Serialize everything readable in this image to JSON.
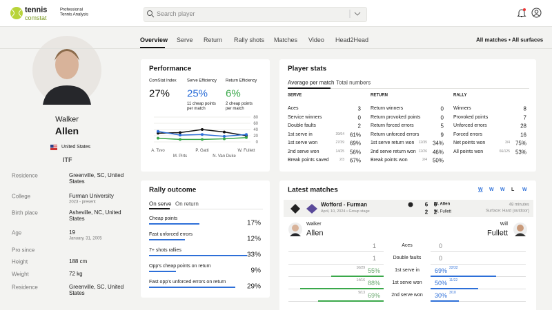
{
  "header": {
    "logo_top": "tennis",
    "logo_bottom": "comstat",
    "tagline": [
      "Professional",
      "Tennis Analysis"
    ],
    "search_placeholder": "Search player"
  },
  "player": {
    "first_name": "Walker",
    "last_name": "Allen",
    "country": "United States",
    "federation": "ITF",
    "info": [
      {
        "label": "Residence",
        "value": "Greenville, SC, United States"
      },
      {
        "label": "College",
        "value": "Furman University",
        "note": "2023 - present"
      },
      {
        "label": "Birth place",
        "value": "Asheville, NC, United States"
      },
      {
        "label": "Age",
        "value": "19",
        "note": "January, 31, 2005"
      },
      {
        "label": "Pro since"
      },
      {
        "label": "Height",
        "value": "188 cm"
      },
      {
        "label": "Weight",
        "value": "72 kg"
      },
      {
        "label": "Residence",
        "value": "Greenville, SC, United States"
      }
    ]
  },
  "tabs": {
    "items": [
      "Overview",
      "Serve",
      "Return",
      "Rally shots",
      "Matches",
      "Video",
      "Head2Head"
    ],
    "filter": "All matches • All surfaces"
  },
  "performance": {
    "title": "Performance",
    "metrics": [
      {
        "label": "ComStat Index",
        "value": "27%",
        "color": "#111111"
      },
      {
        "label": "Serve Efficiency",
        "value": "25%",
        "note": "11 cheap points per match",
        "color": "#2d6fd8"
      },
      {
        "label": "Return Efficiency",
        "value": "6%",
        "note": "2 cheap points per match",
        "color": "#3aa84a"
      }
    ],
    "chart": {
      "type": "line",
      "x": [
        "A. Tsvo",
        "M. Pirts",
        "P. Gatti",
        "N. Van Duke",
        "W. Fullett"
      ],
      "series": [
        {
          "color": "#111111",
          "values": [
            28,
            30,
            40,
            32,
            20
          ]
        },
        {
          "color": "#2d6fd8",
          "values": [
            34,
            22,
            24,
            18,
            24
          ]
        },
        {
          "color": "#3aa84a",
          "values": [
            12,
            8,
            8,
            10,
            14
          ]
        }
      ],
      "ylim": [
        0,
        80
      ],
      "yticks": [
        0,
        20,
        40,
        60,
        80
      ]
    }
  },
  "player_stats": {
    "title": "Player stats",
    "tabs": [
      "Average per match",
      "Total numbers"
    ],
    "columns": [
      {
        "heading": "SERVE",
        "rows": [
          {
            "label": "Aces",
            "value": "3"
          },
          {
            "label": "Service winners",
            "value": "0"
          },
          {
            "label": "Double faults",
            "value": "2"
          },
          {
            "label": "1st serve in",
            "detail": "39/64",
            "value": "61%"
          },
          {
            "label": "1st serve won",
            "detail": "27/39",
            "value": "69%"
          },
          {
            "label": "2nd serve won",
            "detail": "14/25",
            "value": "56%"
          },
          {
            "label": "Break points saved",
            "detail": "2/3",
            "value": "67%"
          }
        ]
      },
      {
        "heading": "RETURN",
        "rows": [
          {
            "label": "Return winners",
            "value": "0"
          },
          {
            "label": "Return provoked points",
            "value": "0"
          },
          {
            "label": "Return forced errors",
            "value": "5"
          },
          {
            "label": "Return unforced errors",
            "value": "9"
          },
          {
            "label": "1st serve return won",
            "detail": "12/35",
            "value": "34%"
          },
          {
            "label": "2nd serve return won",
            "detail": "12/26",
            "value": "46%"
          },
          {
            "label": "Break points won",
            "detail": "2/4",
            "value": "50%"
          }
        ]
      },
      {
        "heading": "RALLY",
        "rows": [
          {
            "label": "Winners",
            "value": "8"
          },
          {
            "label": "Provoked points",
            "value": "7"
          },
          {
            "label": "Unforced errors",
            "value": "28"
          },
          {
            "label": "Forced errors",
            "value": "16"
          },
          {
            "label": "Net points won",
            "detail": "3/4",
            "value": "75%"
          },
          {
            "label": "All points won",
            "detail": "66/125",
            "value": "53%"
          }
        ]
      }
    ]
  },
  "rally_outcome": {
    "title": "Rally outcome",
    "tabs": [
      "On serve",
      "On return"
    ],
    "rows": [
      {
        "label": "Cheap points",
        "value": 17,
        "value_label": "17%"
      },
      {
        "label": "Fast unforced errors",
        "value": 12,
        "value_label": "12%"
      },
      {
        "label": "7+ shots rallies",
        "value": 33,
        "value_label": "33%"
      },
      {
        "label": "Opp's cheap points on return",
        "value": 9,
        "value_label": "9%"
      },
      {
        "label": "Fast opp's unforced errors on return",
        "value": 29,
        "value_label": "29%"
      }
    ]
  },
  "latest_matches": {
    "title": "Latest matches",
    "form": [
      "W",
      "W",
      "W",
      "L",
      "W"
    ],
    "match": {
      "teams": "Wofford - Furman",
      "date": "April, 10, 2024 • Group stage",
      "players": [
        "W. Allen",
        "W. Fullett"
      ],
      "scores": [
        [
          6,
          6
        ],
        [
          2,
          2
        ]
      ],
      "duration": "48 minutes",
      "surface": "Surface: Hard (outdoor)"
    },
    "home": {
      "first": "Walker",
      "last": "Allen"
    },
    "away": {
      "first": "Will",
      "last": "Fullett"
    },
    "rows": [
      {
        "label": "Aces",
        "home": {
          "value": 1
        },
        "away": {
          "value": 0
        }
      },
      {
        "label": "Double faults",
        "home": {
          "value": 1
        },
        "away": {
          "value": 0
        }
      },
      {
        "label": "1st serve in",
        "home": {
          "value": 55,
          "value_label": "55%",
          "detail": "16/29"
        },
        "away": {
          "value": 69,
          "value_label": "69%",
          "detail": "22/32"
        }
      },
      {
        "label": "1st serve won",
        "home": {
          "value": 88,
          "value_label": "88%",
          "detail": "14/16"
        },
        "away": {
          "value": 50,
          "value_label": "50%",
          "detail": "11/22"
        }
      },
      {
        "label": "2nd serve won",
        "home": {
          "value": 69,
          "value_label": "69%",
          "detail": "9/13"
        },
        "away": {
          "value": 30,
          "value_label": "30%",
          "detail": "3/10"
        }
      }
    ]
  }
}
